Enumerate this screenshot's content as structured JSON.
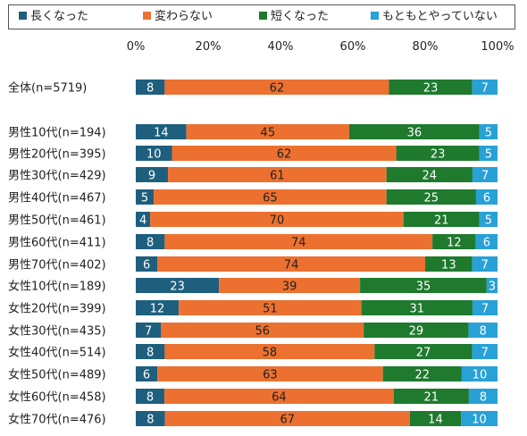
{
  "chart_data": {
    "type": "bar",
    "orientation": "horizontal",
    "stacked": true,
    "percent": true,
    "title": "",
    "xlabel": "",
    "ylabel": "",
    "xlim": [
      0,
      100
    ],
    "x_ticks": [
      "0%",
      "20%",
      "40%",
      "60%",
      "80%",
      "100%"
    ],
    "legend_position": "top",
    "categories": [
      "全体(n=5719)",
      "男性10代(n=194)",
      "男性20代(n=395)",
      "男性30代(n=429)",
      "男性40代(n=467)",
      "男性50代(n=461)",
      "男性60代(n=411)",
      "男性70代(n=402)",
      "女性10代(n=189)",
      "女性20代(n=399)",
      "女性30代(n=435)",
      "女性40代(n=514)",
      "女性50代(n=489)",
      "女性60代(n=458)",
      "女性70代(n=476)"
    ],
    "series": [
      {
        "name": "長くなった",
        "color": "#1f5f7e",
        "values": [
          8,
          14,
          10,
          9,
          5,
          4,
          8,
          6,
          23,
          12,
          7,
          8,
          6,
          8,
          8
        ]
      },
      {
        "name": "変わらない",
        "color": "#ec7130",
        "values": [
          62,
          45,
          62,
          61,
          65,
          70,
          74,
          74,
          39,
          51,
          56,
          58,
          63,
          64,
          67
        ]
      },
      {
        "name": "短くなった",
        "color": "#1f7a2e",
        "values": [
          23,
          36,
          23,
          24,
          25,
          21,
          12,
          13,
          35,
          31,
          29,
          27,
          22,
          21,
          14
        ]
      },
      {
        "name": "もともとやっていない",
        "color": "#27a1d6",
        "values": [
          7,
          5,
          5,
          7,
          6,
          5,
          6,
          7,
          3,
          7,
          8,
          7,
          10,
          8,
          10
        ]
      }
    ]
  }
}
